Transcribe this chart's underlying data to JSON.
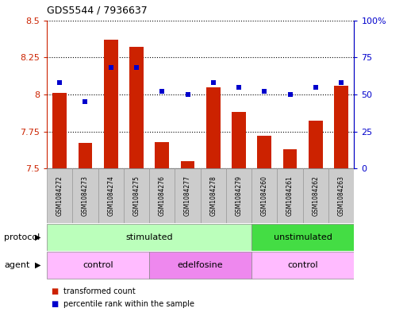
{
  "title": "GDS5544 / 7936637",
  "samples": [
    "GSM1084272",
    "GSM1084273",
    "GSM1084274",
    "GSM1084275",
    "GSM1084276",
    "GSM1084277",
    "GSM1084278",
    "GSM1084279",
    "GSM1084260",
    "GSM1084261",
    "GSM1084262",
    "GSM1084263"
  ],
  "bar_values": [
    8.01,
    7.67,
    8.37,
    8.32,
    7.68,
    7.55,
    8.05,
    7.88,
    7.72,
    7.63,
    7.82,
    8.06
  ],
  "dot_values": [
    58,
    45,
    68,
    68,
    52,
    50,
    58,
    55,
    52,
    50,
    55,
    58
  ],
  "ylim_left": [
    7.5,
    8.5
  ],
  "ylim_right": [
    0,
    100
  ],
  "yticks_left": [
    7.5,
    7.75,
    8.0,
    8.25,
    8.5
  ],
  "ytick_labels_left": [
    "7.5",
    "7.75",
    "8",
    "8.25",
    "8.5"
  ],
  "yticks_right": [
    0,
    25,
    50,
    75,
    100
  ],
  "ytick_labels_right": [
    "0",
    "25",
    "50",
    "75",
    "100%"
  ],
  "bar_color": "#cc2200",
  "dot_color": "#0000cc",
  "bar_width": 0.55,
  "protocol_groups": [
    {
      "label": "stimulated",
      "start": 0,
      "end": 7,
      "color": "#bbffbb"
    },
    {
      "label": "unstimulated",
      "start": 8,
      "end": 11,
      "color": "#44dd44"
    }
  ],
  "agent_groups": [
    {
      "label": "control",
      "start": 0,
      "end": 3,
      "color": "#ffbbff"
    },
    {
      "label": "edelfosine",
      "start": 4,
      "end": 7,
      "color": "#ee88ee"
    },
    {
      "label": "control",
      "start": 8,
      "end": 11,
      "color": "#ffbbff"
    }
  ],
  "legend_bar_label": "transformed count",
  "legend_dot_label": "percentile rank within the sample",
  "protocol_label": "protocol",
  "agent_label": "agent",
  "background_color": "#ffffff",
  "sample_box_color": "#cccccc",
  "sample_box_edge_color": "#999999"
}
